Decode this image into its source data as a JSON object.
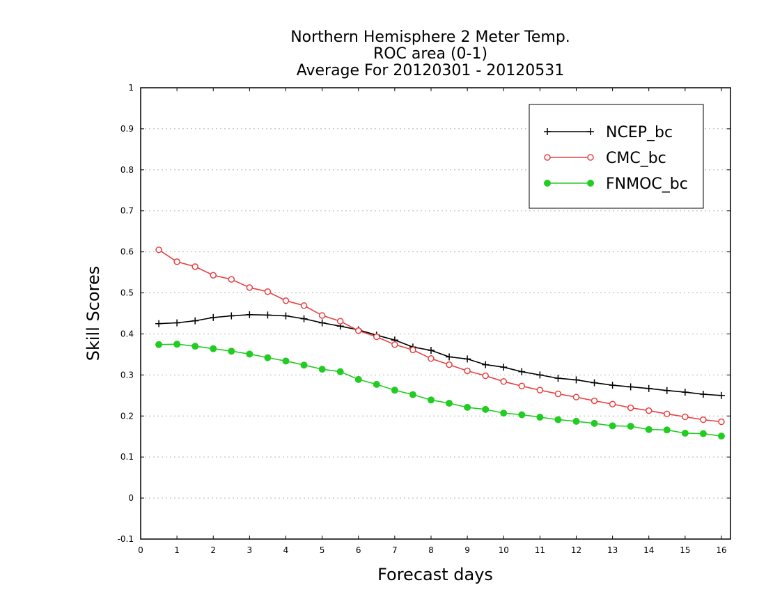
{
  "chart_data": {
    "type": "line",
    "title": "Northern Hemisphere 2 Meter Temp.",
    "subtitle_lines": [
      "ROC area (0-1)",
      "Average For 20120301 - 20120531"
    ],
    "xlabel": "Forecast days",
    "ylabel": "Skill Scores",
    "xlim": [
      0,
      16.25
    ],
    "ylim": [
      -0.1,
      1
    ],
    "x_ticks": [
      0,
      1,
      2,
      3,
      4,
      5,
      6,
      7,
      8,
      9,
      10,
      11,
      12,
      13,
      14,
      15,
      16
    ],
    "y_ticks": [
      -0.1,
      0,
      0.1,
      0.2,
      0.3,
      0.4,
      0.5,
      0.6,
      0.7,
      0.8,
      0.9,
      1
    ],
    "y_tick_labels": [
      "-0.1",
      "0",
      "0.1",
      "0.2",
      "0.3",
      "0.4",
      "0.5",
      "0.6",
      "0.7",
      "0.8",
      "0.9",
      "1"
    ],
    "grid": "horizontal dotted",
    "legend_position": "top-right",
    "x": [
      0.5,
      1,
      1.5,
      2,
      2.5,
      3,
      3.5,
      4,
      4.5,
      5,
      5.5,
      6,
      6.5,
      7,
      7.5,
      8,
      8.5,
      9,
      9.5,
      10,
      10.5,
      11,
      11.5,
      12,
      12.5,
      13,
      13.5,
      14,
      14.5,
      15,
      15.5,
      16
    ],
    "series": [
      {
        "name": "NCEP_bc",
        "color": "#000000",
        "marker": "plus",
        "values": [
          0.425,
          0.427,
          0.432,
          0.44,
          0.444,
          0.447,
          0.446,
          0.444,
          0.437,
          0.427,
          0.419,
          0.41,
          0.397,
          0.385,
          0.368,
          0.36,
          0.344,
          0.339,
          0.325,
          0.319,
          0.308,
          0.3,
          0.292,
          0.288,
          0.281,
          0.275,
          0.271,
          0.267,
          0.262,
          0.258,
          0.253,
          0.25
        ]
      },
      {
        "name": "CMC_bc",
        "color": "#e84040",
        "marker": "open-circle",
        "values": [
          0.605,
          0.576,
          0.564,
          0.543,
          0.533,
          0.513,
          0.503,
          0.481,
          0.469,
          0.445,
          0.431,
          0.408,
          0.393,
          0.374,
          0.361,
          0.34,
          0.325,
          0.31,
          0.298,
          0.284,
          0.273,
          0.263,
          0.254,
          0.246,
          0.237,
          0.229,
          0.22,
          0.213,
          0.205,
          0.198,
          0.191,
          0.186
        ]
      },
      {
        "name": "FNMOC_bc",
        "color": "#22cc22",
        "marker": "filled-circle",
        "values": [
          0.374,
          0.375,
          0.37,
          0.364,
          0.358,
          0.351,
          0.342,
          0.334,
          0.324,
          0.314,
          0.308,
          0.289,
          0.277,
          0.263,
          0.252,
          0.239,
          0.231,
          0.221,
          0.216,
          0.207,
          0.203,
          0.197,
          0.191,
          0.187,
          0.182,
          0.176,
          0.175,
          0.167,
          0.166,
          0.158,
          0.157,
          0.151
        ]
      }
    ]
  }
}
